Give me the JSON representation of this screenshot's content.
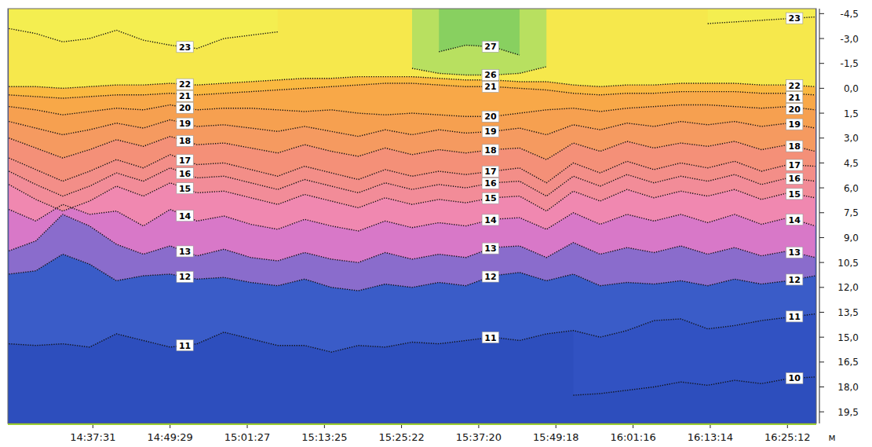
{
  "chart_data": {
    "type": "contour",
    "x": [
      51870,
      52120,
      52370,
      52620,
      52870,
      53120,
      53370,
      53620,
      53870,
      54120,
      54370,
      54620,
      54870,
      55120,
      55370,
      55620,
      55870,
      56120,
      56370,
      56620,
      56870,
      57120,
      57370,
      57620,
      57870,
      58120,
      58370,
      58620,
      58870,
      59120,
      59370
    ],
    "xlim": [
      51860,
      59380
    ],
    "xticks": [
      {
        "value": 52651,
        "label": "14:37:31"
      },
      {
        "value": 53369,
        "label": "14:49:29"
      },
      {
        "value": 54087,
        "label": "15:01:27"
      },
      {
        "value": 54805,
        "label": "15:13:25"
      },
      {
        "value": 55522,
        "label": "15:25:22"
      },
      {
        "value": 56240,
        "label": "15:37:20"
      },
      {
        "value": 56958,
        "label": "15:49:18"
      },
      {
        "value": 57676,
        "label": "16:01:16"
      },
      {
        "value": 58394,
        "label": "16:13:14"
      },
      {
        "value": 59112,
        "label": "16:25:12"
      }
    ],
    "ylim": [
      20.2,
      -4.8
    ],
    "yticks": [
      {
        "value": -4.5,
        "label": "-4,5"
      },
      {
        "value": -3,
        "label": "-3,0"
      },
      {
        "value": -1.5,
        "label": "-1,5"
      },
      {
        "value": 0,
        "label": "0,0"
      },
      {
        "value": 1.5,
        "label": "1,5"
      },
      {
        "value": 3,
        "label": "3,0"
      },
      {
        "value": 4.5,
        "label": "4,5"
      },
      {
        "value": 6,
        "label": "6,0"
      },
      {
        "value": 7.5,
        "label": "7,5"
      },
      {
        "value": 9,
        "label": "9,0"
      },
      {
        "value": 10.5,
        "label": "10,5"
      },
      {
        "value": 12,
        "label": "12,0"
      },
      {
        "value": 13.5,
        "label": "13,5"
      },
      {
        "value": 15,
        "label": "15,0"
      },
      {
        "value": 16.5,
        "label": "16,5"
      },
      {
        "value": 18,
        "label": "18,0"
      },
      {
        "value": 19.5,
        "label": "19,5"
      }
    ],
    "y_label": "м",
    "line_style": "dotted",
    "series": [
      {
        "name": "10",
        "color": "#3152c2",
        "values": [
          null,
          null,
          null,
          null,
          null,
          null,
          null,
          null,
          null,
          null,
          null,
          null,
          null,
          null,
          null,
          null,
          null,
          null,
          null,
          null,
          null,
          18.5,
          18.4,
          18.2,
          18.0,
          17.7,
          17.9,
          17.6,
          17.8,
          17.5,
          17.4
        ]
      },
      {
        "name": "11",
        "color": "#3a5cc8",
        "values": [
          15.4,
          15.5,
          15.4,
          15.6,
          14.8,
          15.2,
          15.6,
          15.4,
          14.7,
          15.1,
          15.5,
          15.5,
          15.9,
          15.5,
          15.6,
          15.3,
          15.4,
          15.2,
          15.0,
          15.2,
          14.8,
          14.6,
          15.0,
          14.6,
          14.0,
          13.9,
          14.5,
          14.3,
          14.0,
          13.8,
          13.6
        ]
      },
      {
        "name": "12",
        "color": "#8a6ccc",
        "values": [
          11.2,
          11.0,
          10.0,
          10.6,
          11.6,
          11.3,
          11.2,
          11.5,
          11.4,
          11.7,
          11.9,
          11.5,
          12.0,
          12.2,
          11.8,
          12.0,
          11.7,
          11.9,
          11.3,
          11.1,
          11.6,
          11.2,
          11.9,
          11.7,
          11.8,
          11.6,
          11.9,
          11.5,
          11.8,
          11.6,
          11.3
        ]
      },
      {
        "name": "13",
        "color": "#d878c8",
        "values": [
          9.8,
          9.2,
          7.6,
          8.3,
          9.4,
          10.0,
          9.5,
          10.1,
          9.7,
          10.2,
          10.4,
          9.9,
          10.3,
          10.5,
          9.9,
          10.3,
          10.0,
          10.2,
          9.6,
          9.5,
          10.2,
          9.3,
          10.0,
          9.6,
          9.9,
          9.5,
          10.0,
          9.6,
          10.1,
          9.8,
          10.2
        ]
      },
      {
        "name": "14",
        "color": "#f088b0",
        "values": [
          7.3,
          8.0,
          7.0,
          7.6,
          7.4,
          8.3,
          7.3,
          8.0,
          7.7,
          8.2,
          8.5,
          7.9,
          8.3,
          8.6,
          8.0,
          8.4,
          8.1,
          8.3,
          7.9,
          7.8,
          8.5,
          7.5,
          8.2,
          7.6,
          8.0,
          7.6,
          8.1,
          7.6,
          8.2,
          7.8,
          8.3
        ]
      },
      {
        "name": "15",
        "color": "#f28c98",
        "values": [
          5.8,
          6.7,
          7.4,
          6.8,
          5.9,
          6.5,
          5.7,
          6.3,
          6.2,
          6.6,
          7.0,
          6.4,
          6.8,
          7.2,
          6.6,
          7.0,
          6.7,
          6.9,
          6.6,
          6.5,
          7.4,
          6.2,
          6.8,
          6.1,
          6.6,
          6.2,
          6.5,
          6.1,
          6.7,
          6.3,
          6.6
        ]
      },
      {
        "name": "16",
        "color": "#f38e88",
        "values": [
          5.0,
          5.8,
          6.5,
          5.9,
          5.1,
          5.6,
          4.8,
          5.4,
          5.3,
          5.7,
          6.1,
          5.5,
          5.9,
          6.3,
          5.7,
          6.1,
          5.8,
          6.0,
          5.7,
          5.6,
          6.5,
          5.3,
          5.9,
          5.2,
          5.7,
          5.3,
          5.6,
          5.2,
          5.8,
          5.4,
          5.6
        ]
      },
      {
        "name": "17",
        "color": "#f49078",
        "values": [
          4.2,
          4.9,
          5.6,
          5.0,
          4.3,
          4.8,
          4.0,
          4.6,
          4.5,
          4.9,
          5.3,
          4.7,
          5.1,
          5.5,
          4.9,
          5.3,
          5.0,
          5.2,
          5.0,
          4.8,
          5.7,
          4.5,
          5.1,
          4.4,
          4.9,
          4.5,
          4.8,
          4.4,
          5.0,
          4.6,
          4.7
        ]
      },
      {
        "name": "18",
        "color": "#f59a60",
        "values": [
          3.0,
          3.6,
          4.2,
          3.7,
          3.1,
          3.5,
          2.9,
          3.4,
          3.3,
          3.6,
          3.9,
          3.4,
          3.8,
          4.1,
          3.6,
          4.0,
          3.7,
          3.9,
          3.7,
          3.6,
          4.3,
          3.3,
          3.8,
          3.2,
          3.6,
          3.3,
          3.5,
          3.2,
          3.7,
          3.4,
          3.8
        ]
      },
      {
        "name": "19",
        "color": "#f6a050",
        "values": [
          2.0,
          2.4,
          2.8,
          2.5,
          2.1,
          2.4,
          1.9,
          2.3,
          2.2,
          2.4,
          2.6,
          2.3,
          2.6,
          2.9,
          2.5,
          2.8,
          2.5,
          2.7,
          2.6,
          2.4,
          2.8,
          2.2,
          2.5,
          2.1,
          2.3,
          2.0,
          2.2,
          2.0,
          2.3,
          2.1,
          2.4
        ]
      },
      {
        "name": "20",
        "color": "#f8a848",
        "values": [
          1.1,
          1.3,
          1.6,
          1.4,
          1.2,
          1.3,
          1.0,
          1.3,
          1.2,
          1.2,
          1.3,
          1.4,
          1.3,
          1.5,
          1.6,
          1.5,
          1.6,
          1.7,
          1.7,
          1.5,
          1.3,
          1.2,
          1.4,
          1.2,
          1.1,
          1.0,
          1.0,
          1.1,
          1.2,
          1.1,
          1.3
        ]
      },
      {
        "name": "21",
        "color": "#fab840",
        "values": [
          0.4,
          0.5,
          0.6,
          0.5,
          0.4,
          0.4,
          0.3,
          0.4,
          0.3,
          0.2,
          0.1,
          0.0,
          -0.1,
          -0.2,
          -0.3,
          -0.3,
          -0.2,
          -0.1,
          -0.1,
          0.0,
          0.1,
          0.3,
          0.4,
          0.3,
          0.3,
          0.2,
          0.2,
          0.2,
          0.3,
          0.3,
          0.4
        ]
      },
      {
        "name": "22",
        "color": "#f6e84c",
        "values": [
          -0.1,
          -0.1,
          0.0,
          -0.1,
          -0.2,
          -0.2,
          -0.3,
          -0.2,
          -0.3,
          -0.4,
          -0.5,
          -0.6,
          -0.6,
          -0.7,
          -0.7,
          -0.7,
          -0.6,
          -0.5,
          -0.5,
          -0.4,
          -0.4,
          -0.2,
          -0.1,
          -0.2,
          -0.2,
          -0.3,
          -0.3,
          -0.3,
          -0.2,
          -0.2,
          -0.1
        ]
      },
      {
        "name": "23",
        "color": "#f4ee50",
        "values": [
          -3.6,
          -3.3,
          -2.8,
          -3.0,
          -3.5,
          -2.9,
          -2.6,
          -2.4,
          -3.0,
          -3.2,
          -3.4,
          null,
          null,
          null,
          null,
          null,
          null,
          null,
          null,
          null,
          null,
          null,
          null,
          null,
          null,
          null,
          -3.9,
          -4.0,
          -4.1,
          -4.2,
          -4.3
        ]
      },
      {
        "name": "26",
        "color": "#b8e060",
        "values": [
          null,
          null,
          null,
          null,
          null,
          null,
          null,
          null,
          null,
          null,
          null,
          null,
          null,
          null,
          null,
          -1.2,
          -0.9,
          -0.8,
          -0.8,
          -0.9,
          -1.3,
          null,
          null,
          null,
          null,
          null,
          null,
          null,
          null,
          null,
          null
        ]
      },
      {
        "name": "27",
        "color": "#88d060",
        "values": [
          null,
          null,
          null,
          null,
          null,
          null,
          null,
          null,
          null,
          null,
          null,
          null,
          null,
          null,
          null,
          null,
          -2.2,
          -2.6,
          -2.5,
          -2.0,
          null,
          null,
          null,
          null,
          null,
          null,
          null,
          null,
          null,
          null,
          null
        ]
      }
    ]
  }
}
